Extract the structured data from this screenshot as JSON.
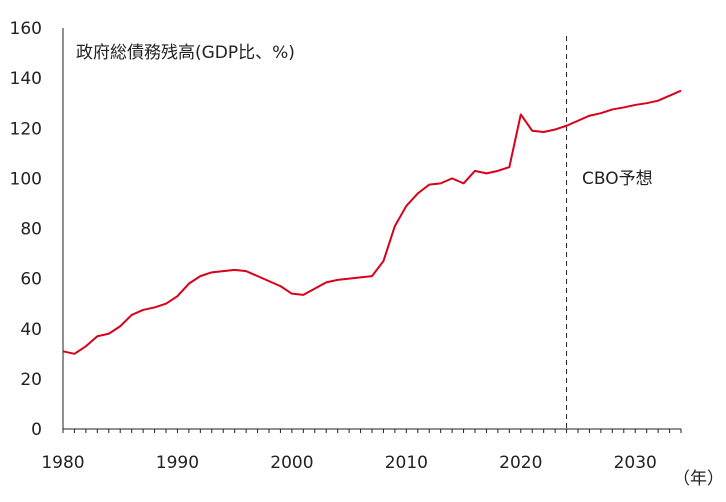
{
  "chart_data": {
    "type": "line",
    "title": "政府総債務残高(GDP比、%)",
    "xlabel": "（年）",
    "ylabel": "",
    "xlim": [
      1980,
      2034
    ],
    "ylim": [
      0,
      160
    ],
    "yticks": [
      0,
      20,
      40,
      60,
      80,
      100,
      120,
      140,
      160
    ],
    "xticks": [
      1980,
      1990,
      2000,
      2010,
      2020,
      2030
    ],
    "grid": false,
    "line_color": "#d9001b",
    "forecast_divider_x": 2024,
    "forecast_label": "CBO予想",
    "series": [
      {
        "x": [
          1980,
          1981,
          1982,
          1983,
          1984,
          1985,
          1986,
          1987,
          1988,
          1989,
          1990,
          1991,
          1992,
          1993,
          1994,
          1995,
          1996,
          1997,
          1998,
          1999,
          2000,
          2001,
          2002,
          2003,
          2004,
          2005,
          2006,
          2007,
          2008,
          2009,
          2010,
          2011,
          2012,
          2013,
          2014,
          2015,
          2016,
          2017,
          2018,
          2019,
          2020,
          2021,
          2022,
          2023,
          2024,
          2025,
          2026,
          2027,
          2028,
          2029,
          2030,
          2031,
          2032,
          2033,
          2034
        ],
        "values": [
          31,
          30,
          33,
          37,
          38,
          41,
          45.5,
          47.5,
          48.5,
          50,
          53,
          58,
          61,
          62.5,
          63,
          63.5,
          63,
          61,
          59,
          57,
          54,
          53.5,
          56,
          58.5,
          59.5,
          60,
          60.5,
          61,
          67,
          81,
          89,
          94,
          97.5,
          98,
          100,
          98,
          103,
          102,
          103,
          104.5,
          125.5,
          119,
          118.5,
          119.5,
          121,
          123,
          125,
          126,
          127.5,
          128.3,
          129.3,
          130,
          131,
          133,
          135
        ]
      }
    ]
  }
}
